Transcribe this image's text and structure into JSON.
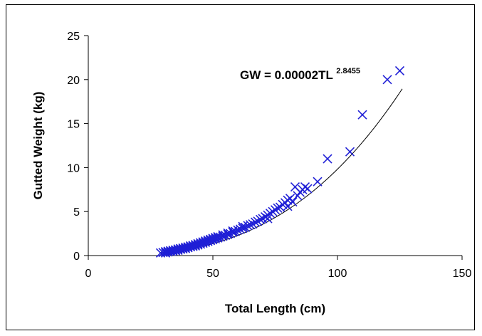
{
  "chart_data": {
    "type": "scatter",
    "title": "",
    "xlabel": "Total Length (cm)",
    "ylabel": "Gutted Weight (kg)",
    "xlim": [
      0,
      150
    ],
    "ylim": [
      0,
      25
    ],
    "xticks": [
      "0",
      "50",
      "100",
      "150"
    ],
    "yticks": [
      "0",
      "5",
      "10",
      "15",
      "20",
      "25"
    ],
    "grid": false,
    "marker": "x",
    "marker_color": "#1f1fd6",
    "trendline": {
      "type": "power",
      "a": 2e-05,
      "b": 2.8455,
      "color": "#000000",
      "label_base": "GW = 0.00002TL",
      "label_exponent": "2.8455"
    },
    "points": [
      [
        29,
        0.3
      ],
      [
        30,
        0.35
      ],
      [
        31,
        0.3
      ],
      [
        31,
        0.45
      ],
      [
        32,
        0.4
      ],
      [
        32,
        0.5
      ],
      [
        33,
        0.45
      ],
      [
        33,
        0.55
      ],
      [
        34,
        0.5
      ],
      [
        34,
        0.6
      ],
      [
        35,
        0.55
      ],
      [
        35,
        0.65
      ],
      [
        36,
        0.6
      ],
      [
        36,
        0.75
      ],
      [
        37,
        0.7
      ],
      [
        37,
        0.8
      ],
      [
        38,
        0.75
      ],
      [
        38,
        0.85
      ],
      [
        39,
        0.8
      ],
      [
        39,
        0.95
      ],
      [
        40,
        0.9
      ],
      [
        40,
        1.0
      ],
      [
        41,
        1.0
      ],
      [
        41,
        1.1
      ],
      [
        42,
        1.05
      ],
      [
        42,
        1.15
      ],
      [
        43,
        1.1
      ],
      [
        43,
        1.25
      ],
      [
        44,
        1.2
      ],
      [
        44,
        1.35
      ],
      [
        45,
        1.3
      ],
      [
        45,
        1.45
      ],
      [
        46,
        1.4
      ],
      [
        46,
        1.55
      ],
      [
        47,
        1.5
      ],
      [
        47,
        1.65
      ],
      [
        48,
        1.6
      ],
      [
        48,
        1.75
      ],
      [
        49,
        1.7
      ],
      [
        49,
        1.85
      ],
      [
        50,
        1.8
      ],
      [
        50,
        1.95
      ],
      [
        51,
        1.9
      ],
      [
        51,
        2.05
      ],
      [
        52,
        2.0
      ],
      [
        52,
        2.15
      ],
      [
        53,
        2.1
      ],
      [
        54,
        2.2
      ],
      [
        54,
        2.35
      ],
      [
        55,
        2.3
      ],
      [
        56,
        2.4
      ],
      [
        56,
        2.55
      ],
      [
        57,
        2.5
      ],
      [
        58,
        2.65
      ],
      [
        58,
        2.8
      ],
      [
        59,
        2.75
      ],
      [
        60,
        2.9
      ],
      [
        61,
        3.0
      ],
      [
        62,
        3.1
      ],
      [
        62,
        3.3
      ],
      [
        63,
        3.2
      ],
      [
        64,
        3.4
      ],
      [
        65,
        3.5
      ],
      [
        66,
        3.6
      ],
      [
        67,
        3.8
      ],
      [
        68,
        3.9
      ],
      [
        69,
        4.1
      ],
      [
        70,
        4.2
      ],
      [
        71,
        4.4
      ],
      [
        72,
        4.6
      ],
      [
        72,
        4.2
      ],
      [
        73,
        4.8
      ],
      [
        74,
        5.0
      ],
      [
        75,
        5.2
      ],
      [
        76,
        5.4
      ],
      [
        77,
        5.5
      ],
      [
        78,
        5.8
      ],
      [
        79,
        6.0
      ],
      [
        80,
        6.3
      ],
      [
        80,
        5.6
      ],
      [
        81,
        6.5
      ],
      [
        82,
        6.1
      ],
      [
        83,
        7.8
      ],
      [
        84,
        6.8
      ],
      [
        85,
        7.2
      ],
      [
        86,
        7.5
      ],
      [
        87,
        7.8
      ],
      [
        88,
        7.6
      ],
      [
        92,
        8.4
      ],
      [
        96,
        11.0
      ],
      [
        105,
        11.8
      ],
      [
        110,
        16.0
      ],
      [
        120,
        20.0
      ],
      [
        125,
        21.0
      ]
    ]
  }
}
